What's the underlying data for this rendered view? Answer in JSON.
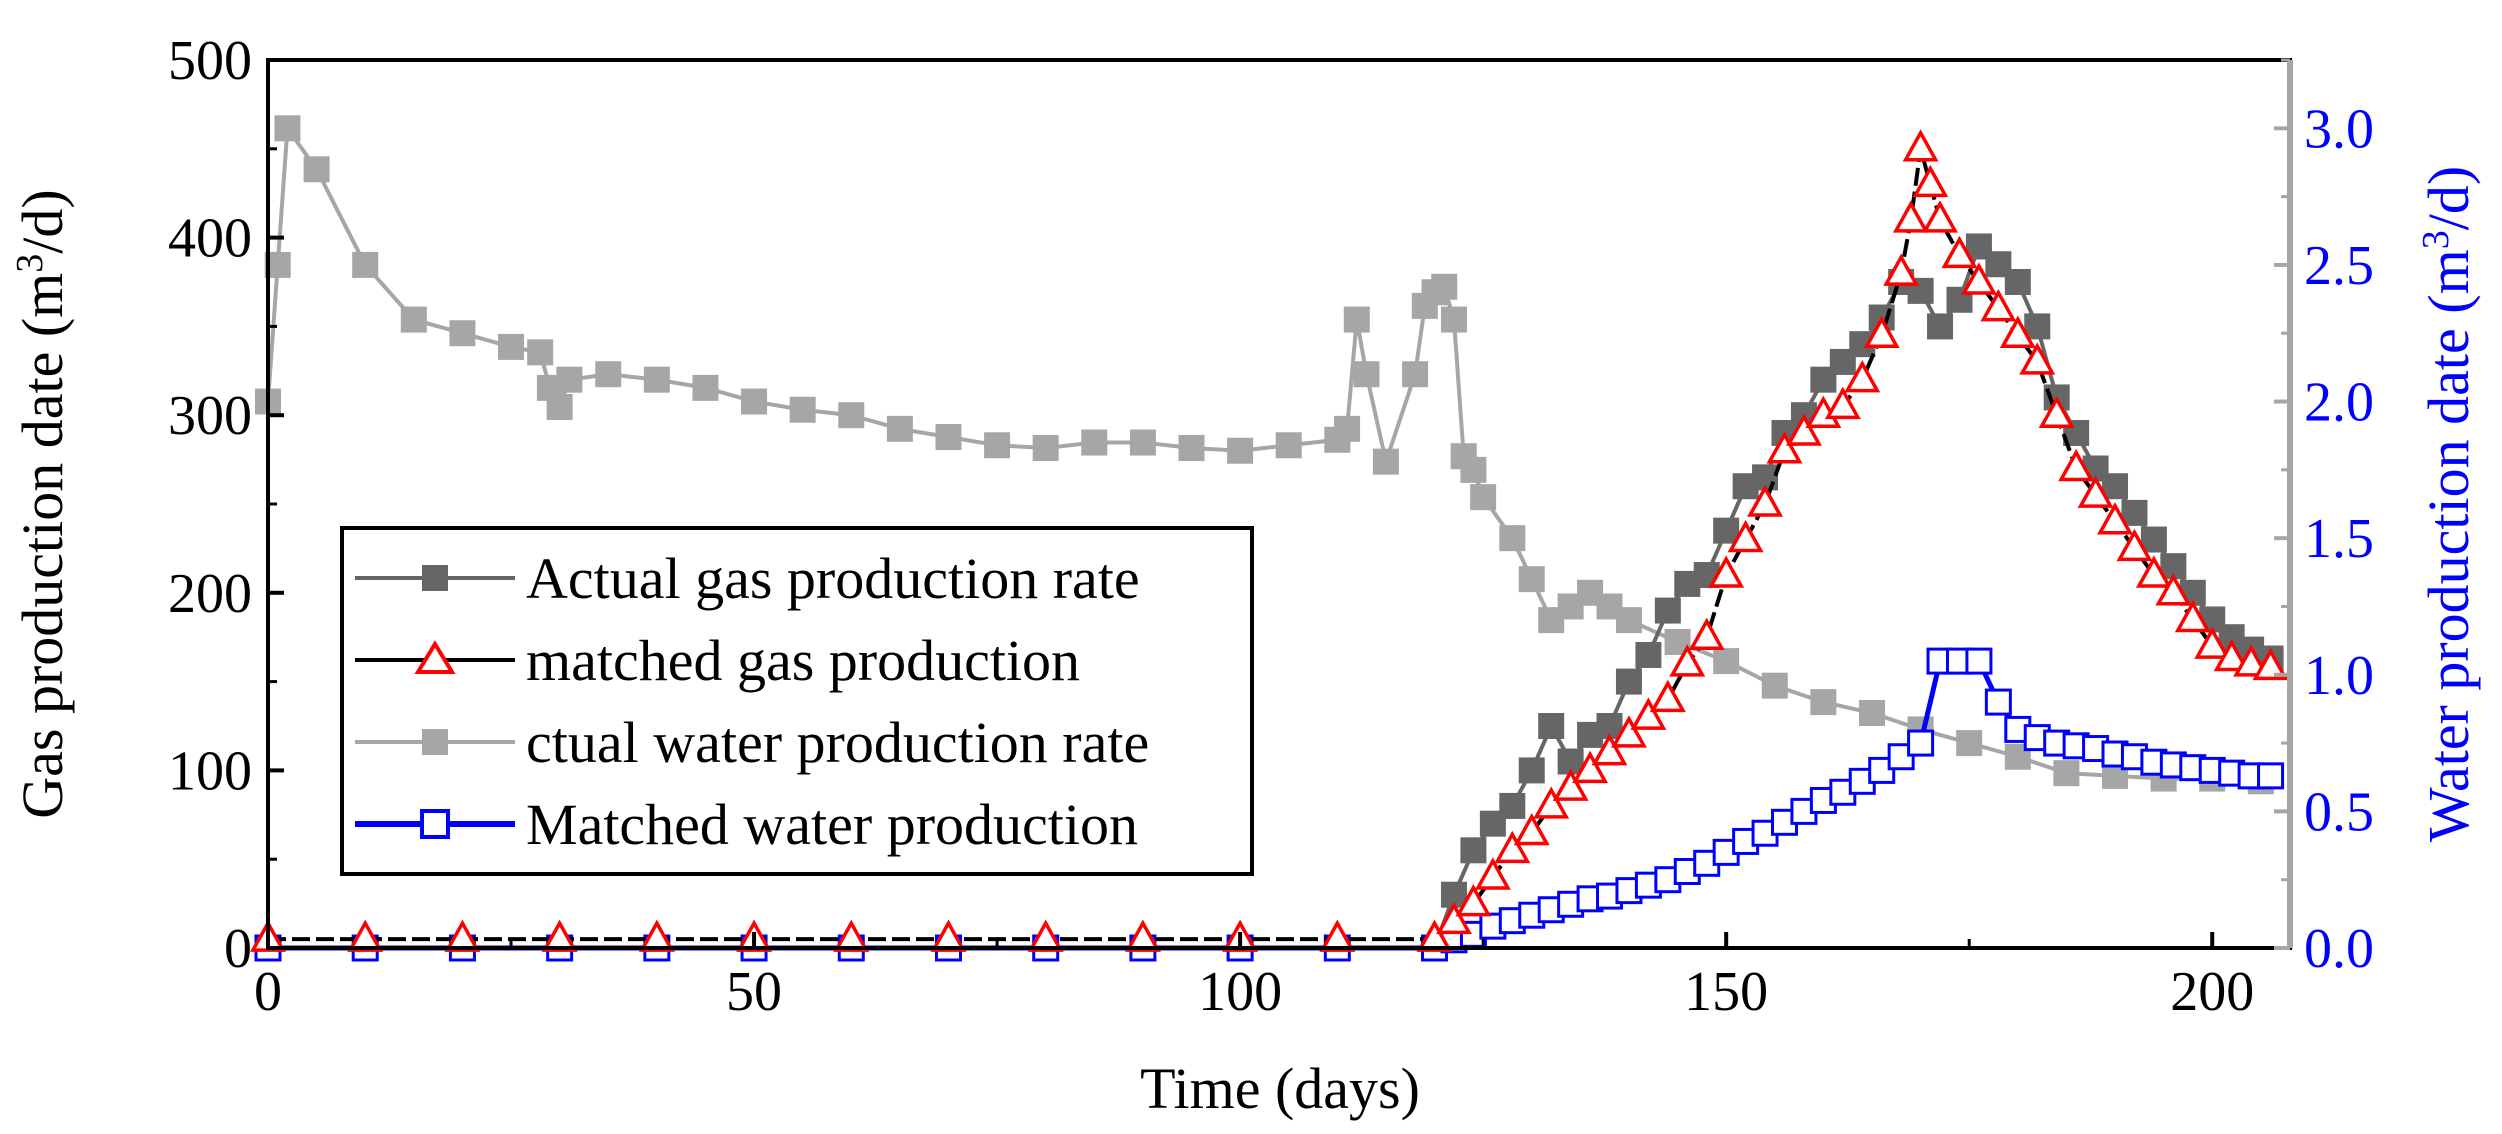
{
  "chart_data": {
    "type": "line",
    "title": "",
    "xlabel": "Time (days)",
    "ylabel_left": "Gas production date (m³/d)",
    "ylabel_right": "Water production date (m³/d)",
    "xlim": [
      0,
      208
    ],
    "ylim_left": [
      0,
      500
    ],
    "ylim_right": [
      0,
      3.25
    ],
    "x_ticks": [
      0,
      50,
      100,
      150,
      200
    ],
    "y_ticks_left": [
      0,
      100,
      200,
      300,
      400,
      500
    ],
    "y_ticks_right": [
      0.0,
      0.5,
      1.0,
      1.5,
      2.0,
      2.5,
      3.0
    ],
    "y_tick_labels_right": [
      "0.0",
      "0.5",
      "1.0",
      "1.5",
      "2.0",
      "2.5",
      "3.0"
    ],
    "grid": false,
    "legend_position": "lower-left",
    "colors": {
      "actual_gas": "#666666",
      "matched_gas": "#ff0000",
      "actual_water": "#a6a6a6",
      "matched_water": "#0000ff",
      "right_axis": "#a6a6a6",
      "right_labels": "#0000ff"
    },
    "series": [
      {
        "name": "Actual gas production rate",
        "axis": "left",
        "color": "#666666",
        "marker": "filled-square",
        "x": [
          0,
          20,
          40,
          60,
          80,
          100,
          120,
          122,
          124,
          126,
          128,
          130,
          132,
          134,
          136,
          138,
          140,
          142,
          144,
          146,
          148,
          150,
          152,
          154,
          156,
          158,
          160,
          162,
          164,
          166,
          168,
          170,
          172,
          174,
          176,
          178,
          180,
          182,
          184,
          186,
          188,
          190,
          192,
          194,
          196,
          198,
          200,
          202,
          204,
          206
        ],
        "y": [
          0,
          0,
          0,
          0,
          0,
          0,
          0,
          30,
          55,
          70,
          80,
          100,
          125,
          105,
          120,
          125,
          150,
          165,
          190,
          205,
          210,
          235,
          260,
          265,
          290,
          300,
          320,
          330,
          340,
          355,
          375,
          370,
          350,
          365,
          395,
          385,
          375,
          350,
          310,
          290,
          270,
          260,
          245,
          230,
          215,
          200,
          185,
          175,
          168,
          163
        ]
      },
      {
        "name": "matched gas production",
        "axis": "left",
        "color": "#ff0000",
        "marker": "open-triangle",
        "x": [
          0,
          10,
          20,
          30,
          40,
          50,
          60,
          70,
          80,
          90,
          100,
          110,
          120,
          122,
          124,
          126,
          128,
          130,
          132,
          134,
          136,
          138,
          140,
          142,
          144,
          146,
          148,
          150,
          152,
          154,
          156,
          158,
          160,
          162,
          164,
          166,
          168,
          169,
          170,
          171,
          172,
          174,
          176,
          178,
          180,
          182,
          184,
          186,
          188,
          190,
          192,
          194,
          196,
          198,
          200,
          202,
          204,
          206
        ],
        "y": [
          5,
          5,
          5,
          5,
          5,
          5,
          5,
          5,
          5,
          5,
          5,
          5,
          5,
          15,
          25,
          40,
          55,
          65,
          80,
          90,
          100,
          110,
          120,
          130,
          140,
          160,
          175,
          210,
          230,
          250,
          280,
          290,
          300,
          305,
          320,
          345,
          380,
          410,
          450,
          430,
          410,
          390,
          375,
          360,
          345,
          330,
          300,
          270,
          255,
          240,
          225,
          210,
          200,
          185,
          170,
          163,
          160,
          158
        ]
      },
      {
        "name": "ctual water production rate",
        "axis": "right",
        "color": "#a6a6a6",
        "marker": "filled-square",
        "x": [
          0,
          1,
          2,
          5,
          10,
          15,
          20,
          25,
          28,
          29,
          30,
          31,
          35,
          40,
          45,
          50,
          55,
          60,
          65,
          70,
          75,
          80,
          85,
          90,
          95,
          100,
          105,
          110,
          111,
          112,
          113,
          115,
          118,
          119,
          120,
          121,
          122,
          123,
          124,
          125,
          128,
          130,
          132,
          134,
          136,
          138,
          140,
          145,
          150,
          155,
          160,
          165,
          170,
          175,
          180,
          185,
          190,
          195,
          200,
          205
        ],
        "y": [
          2.0,
          2.5,
          3.0,
          2.85,
          2.5,
          2.3,
          2.25,
          2.2,
          2.18,
          2.05,
          1.98,
          2.08,
          2.1,
          2.08,
          2.05,
          2.0,
          1.97,
          1.95,
          1.9,
          1.87,
          1.84,
          1.83,
          1.85,
          1.85,
          1.83,
          1.82,
          1.84,
          1.86,
          1.9,
          2.3,
          2.1,
          1.78,
          2.1,
          2.35,
          2.4,
          2.42,
          2.3,
          1.8,
          1.75,
          1.65,
          1.5,
          1.35,
          1.2,
          1.25,
          1.3,
          1.25,
          1.2,
          1.12,
          1.05,
          0.96,
          0.9,
          0.86,
          0.8,
          0.75,
          0.7,
          0.64,
          0.63,
          0.62,
          0.62,
          0.61
        ]
      },
      {
        "name": "Matched water production",
        "axis": "right",
        "color": "#0000ff",
        "marker": "open-square",
        "x": [
          0,
          10,
          20,
          30,
          40,
          50,
          60,
          70,
          80,
          90,
          100,
          110,
          120,
          122,
          124,
          126,
          128,
          130,
          132,
          134,
          136,
          138,
          140,
          142,
          144,
          146,
          148,
          150,
          152,
          154,
          156,
          158,
          160,
          162,
          164,
          166,
          168,
          170,
          172,
          174,
          176,
          178,
          180,
          182,
          184,
          186,
          188,
          190,
          192,
          194,
          196,
          198,
          200,
          202,
          204,
          206
        ],
        "y": [
          0,
          0,
          0,
          0,
          0,
          0,
          0,
          0,
          0,
          0,
          0,
          0,
          0,
          0.03,
          0.05,
          0.08,
          0.1,
          0.12,
          0.14,
          0.16,
          0.18,
          0.19,
          0.21,
          0.23,
          0.25,
          0.28,
          0.31,
          0.35,
          0.39,
          0.42,
          0.46,
          0.5,
          0.54,
          0.57,
          0.61,
          0.65,
          0.7,
          0.75,
          1.05,
          1.05,
          1.05,
          0.9,
          0.8,
          0.77,
          0.75,
          0.74,
          0.73,
          0.71,
          0.7,
          0.68,
          0.67,
          0.66,
          0.65,
          0.64,
          0.63,
          0.63
        ]
      }
    ]
  }
}
